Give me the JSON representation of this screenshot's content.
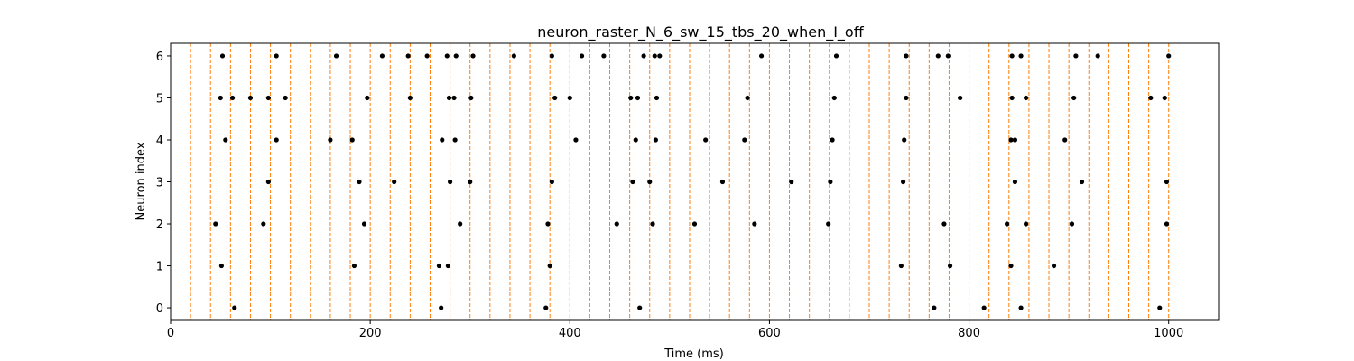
{
  "chart_data": {
    "type": "scatter",
    "title": "neuron_raster_N_6_sw_15_tbs_20_when_I_off",
    "xlabel": "Time (ms)",
    "ylabel": "Neuron index",
    "xlim": [
      0,
      1050
    ],
    "ylim": [
      -0.3,
      6.3
    ],
    "xticks": [
      0,
      200,
      400,
      600,
      800,
      1000
    ],
    "yticks": [
      0,
      1,
      2,
      3,
      4,
      5,
      6
    ],
    "grid": false,
    "legend": "none",
    "point_color": "#000000",
    "bin_line_color": "#ff7f0e",
    "bin_lines": [
      0,
      20,
      40,
      60,
      80,
      100,
      120,
      140,
      160,
      180,
      200,
      220,
      240,
      260,
      280,
      300,
      320,
      340,
      360,
      380,
      400,
      420,
      440,
      460,
      480,
      500,
      520,
      540,
      560,
      580,
      600,
      620,
      640,
      660,
      680,
      700,
      720,
      740,
      760,
      780,
      800,
      820,
      840,
      860,
      880,
      900,
      920,
      940,
      960,
      980,
      1000
    ],
    "spikes": [
      {
        "neuron": 6,
        "times": [
          52,
          106,
          166,
          212,
          238,
          257,
          277,
          286,
          303,
          344,
          382,
          412,
          434,
          474,
          485,
          490,
          592,
          667,
          737,
          769,
          779,
          843,
          852,
          907,
          929,
          1000
        ]
      },
      {
        "neuron": 5,
        "times": [
          50,
          62,
          80,
          98,
          115,
          197,
          240,
          279,
          284,
          301,
          385,
          400,
          461,
          468,
          487,
          578,
          665,
          737,
          791,
          843,
          857,
          905,
          982,
          996
        ]
      },
      {
        "neuron": 4,
        "times": [
          55,
          106,
          160,
          182,
          272,
          285,
          406,
          466,
          486,
          536,
          575,
          663,
          735,
          842,
          846,
          896
        ]
      },
      {
        "neuron": 3,
        "times": [
          98,
          189,
          224,
          280,
          300,
          382,
          463,
          480,
          553,
          622,
          661,
          734,
          846,
          913,
          998
        ]
      },
      {
        "neuron": 2,
        "times": [
          45,
          93,
          194,
          290,
          378,
          447,
          483,
          525,
          585,
          659,
          775,
          838,
          857,
          903,
          998
        ]
      },
      {
        "neuron": 1,
        "times": [
          51,
          184,
          269,
          278,
          380,
          732,
          781,
          842,
          885
        ]
      },
      {
        "neuron": 0,
        "times": [
          64,
          271,
          376,
          470,
          765,
          815,
          852,
          991
        ]
      }
    ]
  }
}
